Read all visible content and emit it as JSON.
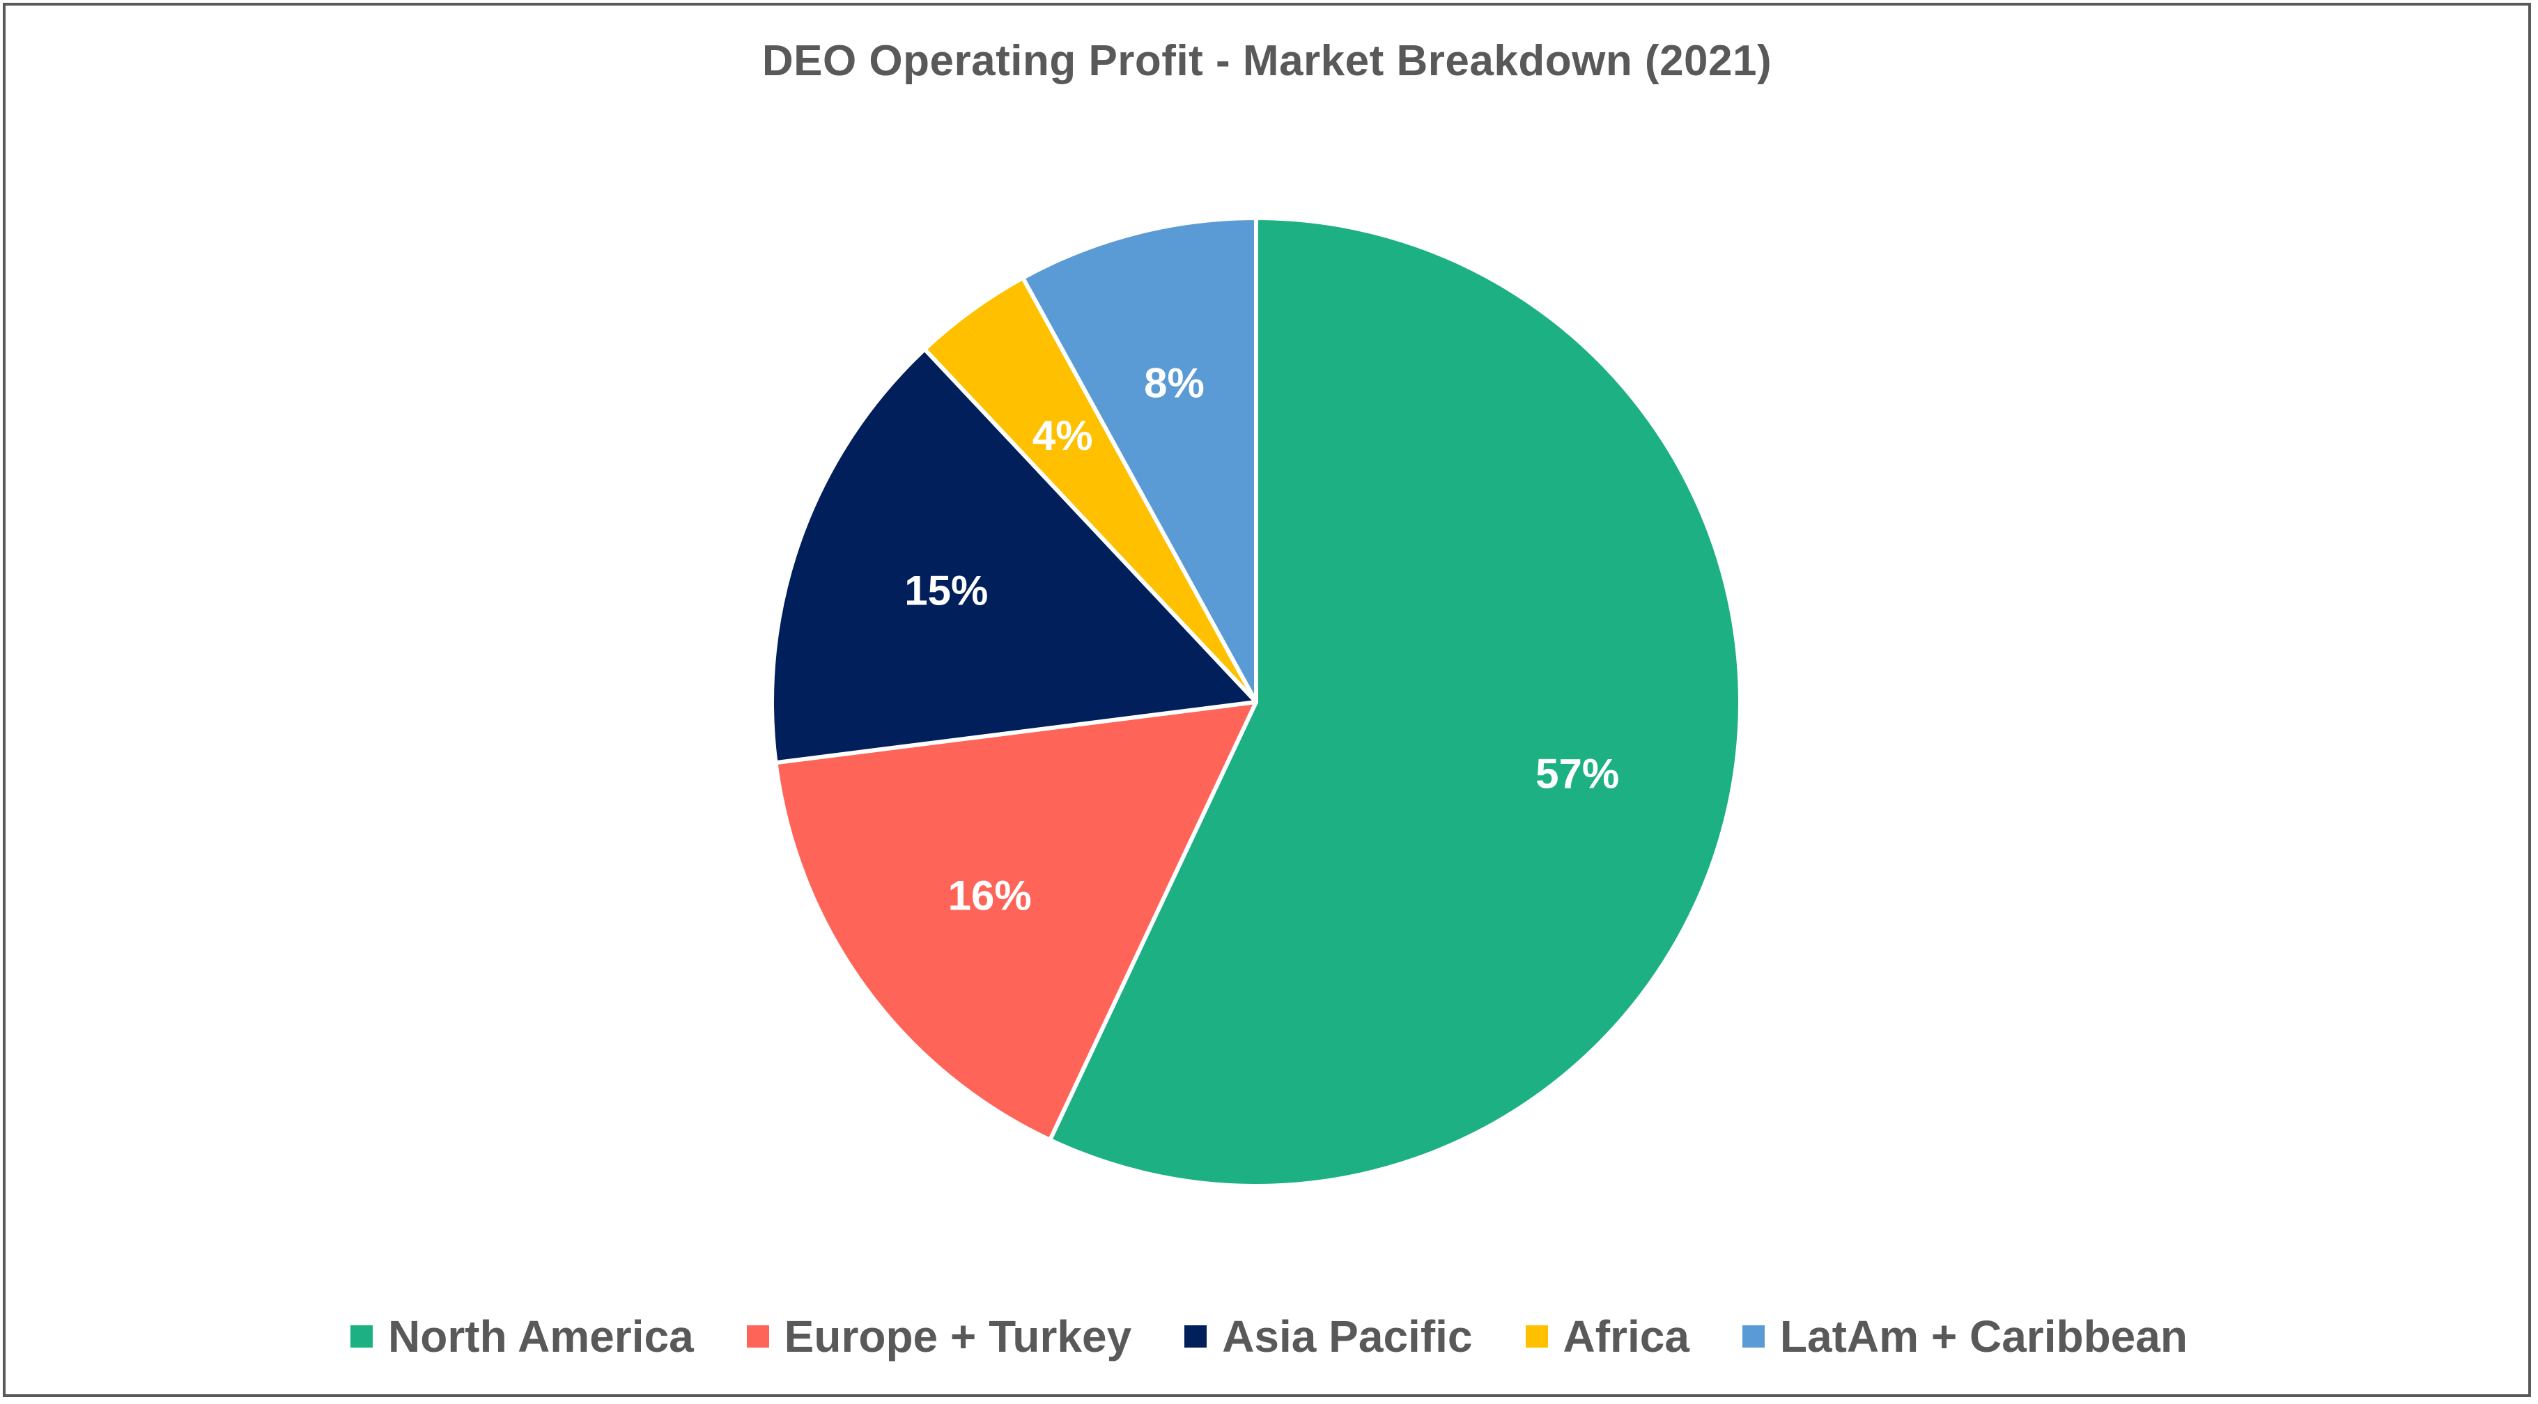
{
  "chart_data": {
    "type": "pie",
    "title": "DEO Operating Profit - Market Breakdown (2021)",
    "legend_position": "bottom",
    "slices": [
      {
        "name": "North America",
        "value": 57,
        "label": "57%",
        "color": "#1DB082"
      },
      {
        "name": "Europe + Turkey",
        "value": 16,
        "label": "16%",
        "color": "#FF6459"
      },
      {
        "name": "Asia Pacific",
        "value": 15,
        "label": "15%",
        "color": "#001F5B"
      },
      {
        "name": "Africa",
        "value": 4,
        "label": "4%",
        "color": "#FFC000"
      },
      {
        "name": "LatAm + Caribbean",
        "value": 8,
        "label": "8%",
        "color": "#5B9BD5"
      }
    ]
  }
}
